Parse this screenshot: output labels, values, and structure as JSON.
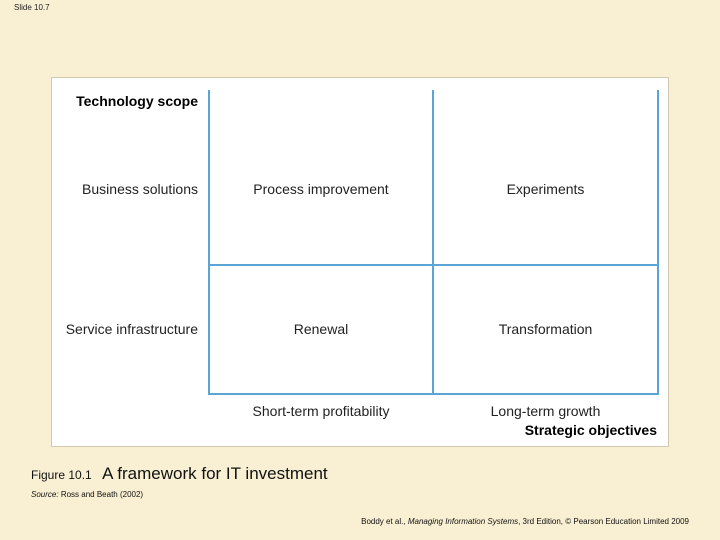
{
  "slide_label": "Slide 10.7",
  "diagram": {
    "y_axis_title": "Technology scope",
    "rows": [
      "Business solutions",
      "Service infrastructure"
    ],
    "cells": [
      [
        "Process improvement",
        "Experiments"
      ],
      [
        "Renewal",
        "Transformation"
      ]
    ],
    "columns": [
      "Short-term profitability",
      "Long-term growth"
    ],
    "x_axis_title": "Strategic objectives"
  },
  "caption": {
    "figure_number": "Figure 10.1",
    "title": "A framework for IT investment"
  },
  "source": {
    "label": "Source:",
    "text": "Ross and Beath (2002)"
  },
  "footer": {
    "authors": "Boddy et al.,",
    "book": "Managing Information Systems",
    "edition": ", 3rd Edition, © Pearson Education Limited 2009"
  }
}
